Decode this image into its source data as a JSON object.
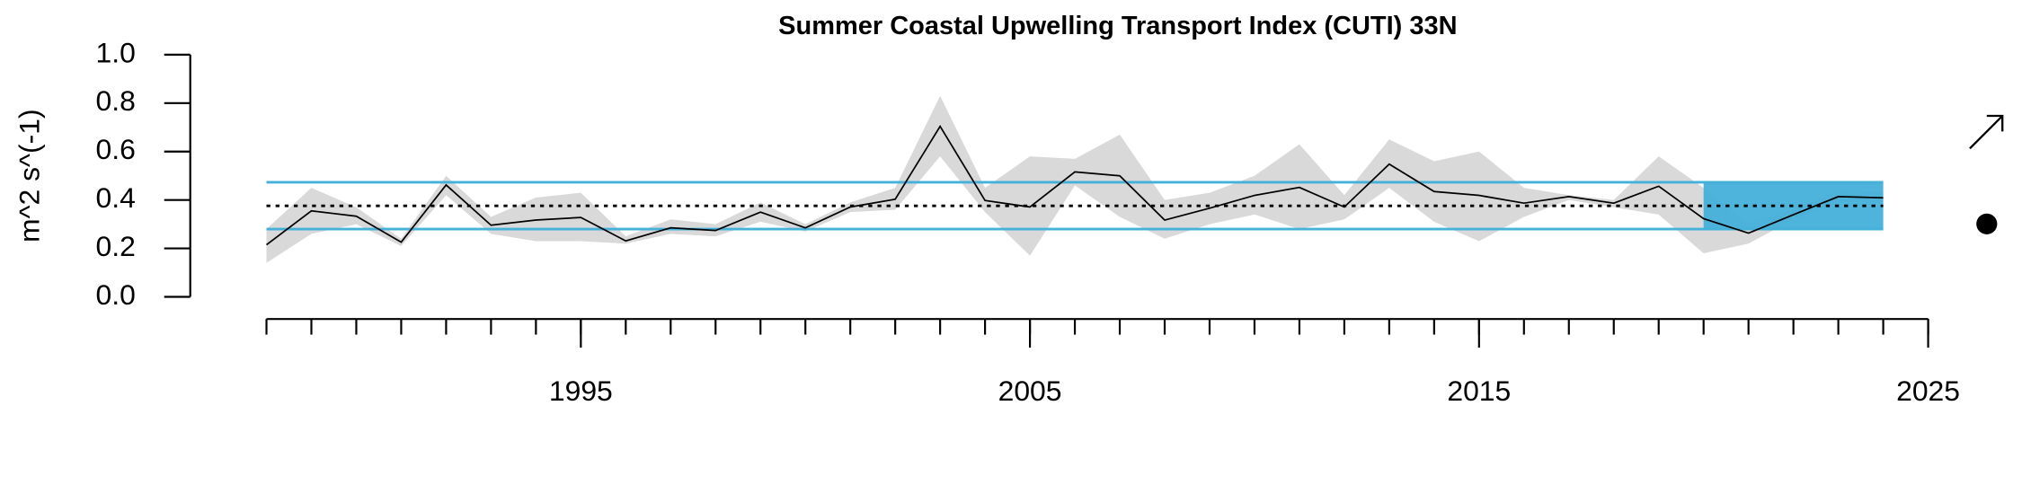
{
  "chart_data": {
    "type": "line",
    "title": "Summer Coastal Upwelling Transport Index (CUTI) 33N",
    "y_label": "m^2 s^(-1)",
    "x": [
      1988,
      1989,
      1990,
      1991,
      1992,
      1993,
      1994,
      1995,
      1996,
      1997,
      1998,
      1999,
      2000,
      2001,
      2002,
      2003,
      2004,
      2005,
      2006,
      2007,
      2008,
      2009,
      2010,
      2011,
      2012,
      2013,
      2014,
      2015,
      2016,
      2017,
      2018,
      2019,
      2020,
      2021,
      2022,
      2023,
      2024
    ],
    "values": [
      0.215,
      0.355,
      0.333,
      0.226,
      0.462,
      0.296,
      0.317,
      0.328,
      0.231,
      0.285,
      0.274,
      0.35,
      0.285,
      0.371,
      0.403,
      0.704,
      0.398,
      0.371,
      0.516,
      0.5,
      0.317,
      0.366,
      0.419,
      0.452,
      0.371,
      0.548,
      0.435,
      0.419,
      0.387,
      0.414,
      0.387,
      0.457,
      0.323,
      0.263,
      0.339,
      0.414,
      0.409
    ],
    "upper": [
      0.28,
      0.45,
      0.37,
      0.24,
      0.5,
      0.33,
      0.41,
      0.43,
      0.25,
      0.32,
      0.3,
      0.39,
      0.3,
      0.39,
      0.45,
      0.83,
      0.45,
      0.58,
      0.57,
      0.67,
      0.4,
      0.43,
      0.5,
      0.63,
      0.42,
      0.65,
      0.56,
      0.6,
      0.45,
      0.42,
      0.4,
      0.58,
      0.45,
      0.3,
      0.36,
      0.44,
      0.43
    ],
    "lower": [
      0.14,
      0.26,
      0.3,
      0.21,
      0.42,
      0.26,
      0.23,
      0.23,
      0.22,
      0.26,
      0.25,
      0.31,
      0.27,
      0.35,
      0.36,
      0.58,
      0.35,
      0.17,
      0.46,
      0.33,
      0.24,
      0.3,
      0.34,
      0.28,
      0.32,
      0.45,
      0.31,
      0.23,
      0.33,
      0.4,
      0.37,
      0.34,
      0.18,
      0.22,
      0.32,
      0.39,
      0.39
    ],
    "color": "#000000",
    "band_color": "#d9d9d9",
    "mean": 0.376,
    "sd_upper": 0.473,
    "sd_lower": 0.28,
    "ref_color": "#45b0d9",
    "highlight_xlim": [
      2020,
      2024
    ],
    "xlim": [
      1988,
      2025
    ],
    "xticks": [
      1995,
      2005,
      2015,
      2025
    ],
    "xminorticks": [
      1988,
      1989,
      1990,
      1991,
      1992,
      1993,
      1994,
      1995,
      1996,
      1997,
      1998,
      1999,
      2000,
      2001,
      2002,
      2003,
      2004,
      2005,
      2006,
      2007,
      2008,
      2009,
      2010,
      2011,
      2012,
      2013,
      2014,
      2015,
      2016,
      2017,
      2018,
      2019,
      2020,
      2021,
      2022,
      2023,
      2024,
      2025
    ],
    "ylim": [
      0,
      1
    ],
    "yticks": [
      {
        "value": 0,
        "label": "0.0"
      },
      0.2,
      0.4,
      0.6,
      0.8,
      {
        "value": 1,
        "label": "1.0"
      }
    ]
  }
}
